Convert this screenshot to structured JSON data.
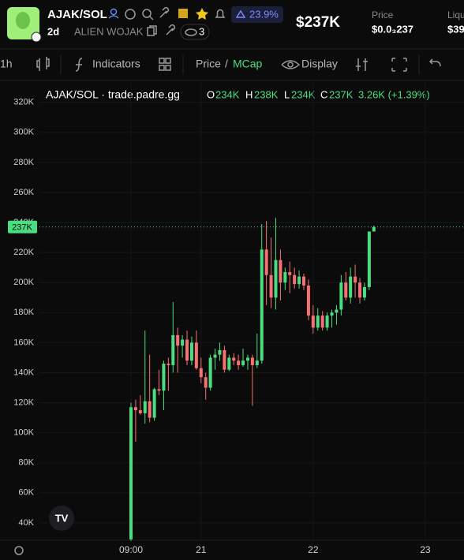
{
  "header": {
    "pair": "AJAK/SOL",
    "age": "2d",
    "token_name": "ALIEN WOJAK",
    "watchers": "3",
    "change": "23.9%",
    "market_cap": "$237K",
    "price_label": "Price",
    "price_value": "$0.0₃237",
    "liquidity_label": "Liqu",
    "liquidity_value": "$39"
  },
  "toolbar": {
    "interval": "1h",
    "indicators": "Indicators",
    "price": "Price",
    "separator": "/",
    "mcap": "MCap",
    "display": "Display"
  },
  "chart_legend": {
    "source": "AJAK/SOL · trade.padre.gg",
    "o_key": "O",
    "o_value": "234K",
    "h_key": "H",
    "h_value": "238K",
    "l_key": "L",
    "l_value": "234K",
    "c_key": "C",
    "c_value": "237K",
    "change": "3.26K (+1.39%)"
  },
  "chart_data": {
    "type": "candlestick",
    "x": [
      9,
      10,
      11,
      12,
      13,
      14,
      15,
      16,
      17,
      18,
      19,
      20,
      21,
      22,
      23,
      24,
      25,
      26,
      27,
      28,
      29,
      30,
      31,
      32,
      33,
      34,
      35,
      36,
      37,
      38,
      39,
      40,
      41,
      42,
      43,
      44,
      45,
      46,
      47,
      48,
      49,
      50,
      51,
      52,
      53,
      54,
      55,
      56,
      57,
      58,
      59,
      60,
      61
    ],
    "open": [
      29000,
      117000,
      115000,
      113000,
      121000,
      110000,
      129000,
      128000,
      146000,
      145000,
      165000,
      158000,
      162000,
      148000,
      160000,
      143000,
      137000,
      130000,
      150000,
      152000,
      155000,
      142000,
      150000,
      148000,
      145000,
      148000,
      150000,
      145000,
      148000,
      222000,
      205000,
      190000,
      215000,
      200000,
      207000,
      205000,
      199000,
      204000,
      198000,
      178000,
      170000,
      178000,
      170000,
      178000,
      180000,
      182000,
      200000,
      190000,
      204000,
      200000,
      190000,
      197000,
      234000
    ],
    "high": [
      120000,
      122000,
      125000,
      168000,
      152000,
      130000,
      142000,
      148000,
      150000,
      187000,
      170000,
      165000,
      168000,
      164000,
      168000,
      150000,
      140000,
      152000,
      156000,
      160000,
      158000,
      152000,
      153000,
      152000,
      156000,
      152000,
      152000,
      166000,
      239000,
      241000,
      230000,
      243000,
      222000,
      210000,
      214000,
      210000,
      208000,
      206000,
      202000,
      185000,
      183000,
      181000,
      180000,
      182000,
      185000,
      205000,
      207000,
      210000,
      212000,
      203000,
      200000,
      234000,
      238000
    ],
    "low": [
      28000,
      94000,
      112000,
      106000,
      107000,
      108000,
      125000,
      115000,
      128000,
      140000,
      140000,
      150000,
      145000,
      145000,
      142000,
      133000,
      122000,
      128000,
      142000,
      148000,
      140000,
      141000,
      145000,
      142000,
      144000,
      142000,
      118000,
      143000,
      146000,
      185000,
      183000,
      182000,
      188000,
      195000,
      193000,
      196000,
      196000,
      195000,
      175000,
      166000,
      168000,
      168000,
      168000,
      170000,
      172000,
      178000,
      188000,
      186000,
      190000,
      186000,
      188000,
      195000,
      234000
    ],
    "close": [
      117000,
      115000,
      113000,
      121000,
      110000,
      129000,
      128000,
      146000,
      145000,
      165000,
      158000,
      162000,
      148000,
      160000,
      143000,
      137000,
      130000,
      150000,
      152000,
      155000,
      142000,
      150000,
      148000,
      145000,
      148000,
      150000,
      145000,
      148000,
      222000,
      205000,
      190000,
      215000,
      200000,
      207000,
      205000,
      199000,
      204000,
      198000,
      178000,
      170000,
      178000,
      170000,
      178000,
      180000,
      182000,
      200000,
      190000,
      204000,
      200000,
      190000,
      197000,
      234000,
      237000
    ],
    "up_color": "#4ade80",
    "down_color": "#f87171",
    "xlim": [
      -10.6,
      80.3
    ],
    "xticks": [
      {
        "value": 9,
        "label": "09:00"
      },
      {
        "value": 24,
        "label": "21"
      },
      {
        "value": 48,
        "label": "22"
      },
      {
        "value": 72,
        "label": "23"
      }
    ],
    "ylim": [
      28400,
      333000
    ],
    "yticks": [
      {
        "value": 40000,
        "label": "40K"
      },
      {
        "value": 60000,
        "label": "60K"
      },
      {
        "value": 80000,
        "label": "80K"
      },
      {
        "value": 100000,
        "label": "100K"
      },
      {
        "value": 120000,
        "label": "120K"
      },
      {
        "value": 140000,
        "label": "140K"
      },
      {
        "value": 160000,
        "label": "160K"
      },
      {
        "value": 180000,
        "label": "180K"
      },
      {
        "value": 200000,
        "label": "200K"
      },
      {
        "value": 220000,
        "label": "220K"
      },
      {
        "value": 240000,
        "label": "240K"
      },
      {
        "value": 260000,
        "label": "260K"
      },
      {
        "value": 280000,
        "label": "280K"
      },
      {
        "value": 300000,
        "label": "300K"
      },
      {
        "value": 320000,
        "label": "320K"
      }
    ],
    "last_price": {
      "value": 237000,
      "label": "237K"
    },
    "grid": true
  }
}
